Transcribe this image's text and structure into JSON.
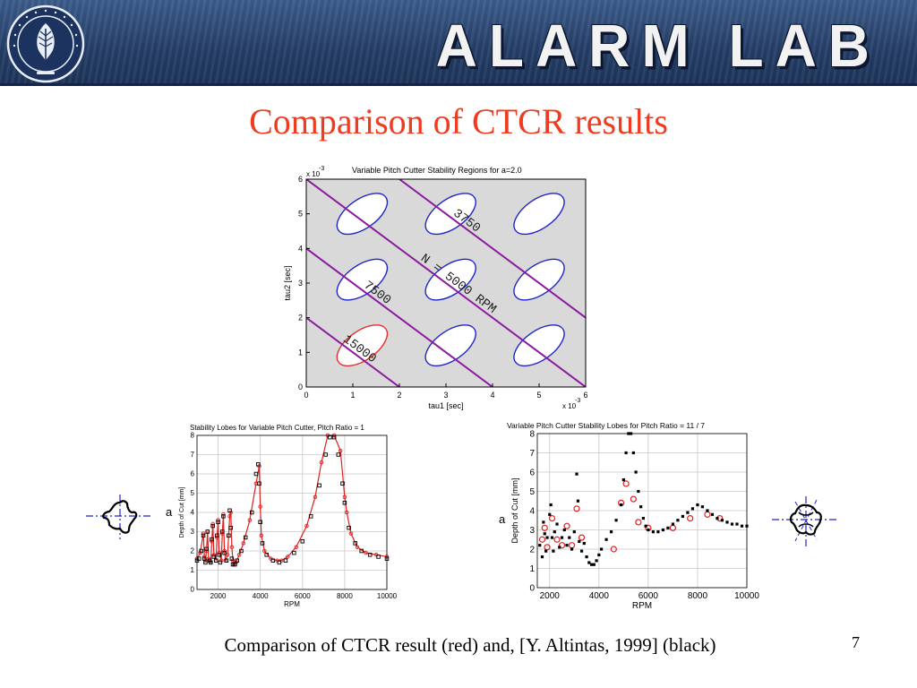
{
  "header": {
    "title": "ALARM LAB",
    "logo": "university-seal"
  },
  "slide": {
    "title": "Comparison of CTCR results",
    "caption": "Comparison of CTCR result (red) and, [Y.  Altintas, 1999] (black)",
    "page_number": "7",
    "left_marker": "a",
    "right_marker": "a"
  },
  "colors": {
    "title": "#ef3b1f",
    "stable_region": "#1f24c9",
    "red_region": "#e82b2b",
    "line": "#8b1a9e",
    "black_marks": "#000000"
  },
  "chart_data": [
    {
      "type": "scatter",
      "title": "Variable Pitch Cutter Stability Regions for a=2.0",
      "xlabel": "tau1 [sec]",
      "ylabel": "tau2 [sec]",
      "x_multiplier": "x 10",
      "x_multiplier_exp": "-3",
      "y_multiplier": "x 10",
      "y_multiplier_exp": "-3",
      "xlim": [
        0,
        6
      ],
      "ylim": [
        0,
        6
      ],
      "xticks": [
        0,
        1,
        2,
        3,
        4,
        5,
        6
      ],
      "yticks": [
        0,
        1,
        2,
        3,
        4,
        5,
        6
      ],
      "lines": [
        {
          "label": "15000",
          "sum": 2
        },
        {
          "label": "7500",
          "sum": 4
        },
        {
          "label": "N  =  5000  RPM",
          "sum": 6
        },
        {
          "label": "3750",
          "sum": 8
        }
      ],
      "regions": [
        {
          "cx": 1.2,
          "cy": 1.2,
          "rx": 0.62,
          "ry": 0.42,
          "color": "red"
        },
        {
          "cx": 1.2,
          "cy": 5.0,
          "rx": 0.62,
          "ry": 0.42,
          "color": "blue"
        },
        {
          "cx": 3.1,
          "cy": 5.0,
          "rx": 0.62,
          "ry": 0.42,
          "color": "blue"
        },
        {
          "cx": 5.0,
          "cy": 5.0,
          "rx": 0.62,
          "ry": 0.42,
          "color": "blue"
        },
        {
          "cx": 1.2,
          "cy": 3.1,
          "rx": 0.62,
          "ry": 0.42,
          "color": "blue"
        },
        {
          "cx": 3.1,
          "cy": 3.1,
          "rx": 0.62,
          "ry": 0.42,
          "color": "blue"
        },
        {
          "cx": 5.0,
          "cy": 3.1,
          "rx": 0.62,
          "ry": 0.42,
          "color": "blue"
        },
        {
          "cx": 3.1,
          "cy": 1.2,
          "rx": 0.62,
          "ry": 0.42,
          "color": "blue"
        },
        {
          "cx": 5.0,
          "cy": 1.2,
          "rx": 0.62,
          "ry": 0.42,
          "color": "blue"
        }
      ],
      "grid": false
    },
    {
      "type": "line",
      "title": "Stability Lobes for Variable Pitch Cutter, Pitch Ratio = 1",
      "xlabel": "RPM",
      "ylabel": "Depth of Cut [mm]",
      "xlim": [
        1000,
        10000
      ],
      "ylim": [
        0,
        8
      ],
      "xticks": [
        2000,
        4000,
        6000,
        8000,
        10000
      ],
      "yticks": [
        0,
        1,
        2,
        3,
        4,
        5,
        6,
        7,
        8
      ],
      "grid": true,
      "series": [
        {
          "style": "red-line-with-circles",
          "x": [
            1000,
            1150,
            1300,
            1350,
            1400,
            1450,
            1500,
            1550,
            1650,
            1700,
            1750,
            1800,
            1900,
            1950,
            2000,
            2050,
            2150,
            2200,
            2250,
            2300,
            2350,
            2450,
            2550,
            2600,
            2650,
            2700,
            2750,
            2850,
            3000,
            3200,
            3500,
            3800,
            3950,
            4000,
            4050,
            4200,
            4500,
            4800,
            5000,
            5300,
            5700,
            6200,
            6600,
            6900,
            7200,
            7500,
            7800,
            8000,
            8100,
            8300,
            8600,
            9000,
            9500,
            10000
          ],
          "y": [
            1.6,
            1.9,
            2.9,
            1.7,
            1.5,
            2.0,
            3.0,
            1.6,
            1.4,
            2.5,
            3.4,
            1.8,
            1.5,
            2.7,
            3.6,
            1.9,
            1.5,
            2.9,
            3.9,
            2.0,
            1.5,
            1.8,
            3.8,
            4.0,
            2.2,
            1.5,
            1.3,
            1.4,
            1.8,
            2.4,
            3.6,
            5.5,
            6.4,
            4.3,
            2.8,
            2.0,
            1.6,
            1.5,
            1.5,
            1.7,
            2.2,
            3.3,
            4.8,
            6.6,
            8.0,
            8.0,
            7.2,
            4.8,
            4.0,
            2.9,
            2.2,
            1.9,
            1.8,
            1.7
          ]
        },
        {
          "style": "black-squares",
          "x": [
            1000,
            1100,
            1200,
            1300,
            1350,
            1400,
            1450,
            1500,
            1600,
            1650,
            1700,
            1750,
            1800,
            1900,
            1950,
            2000,
            2050,
            2100,
            2200,
            2250,
            2300,
            2400,
            2500,
            2550,
            2600,
            2650,
            2700,
            2800,
            2900,
            3100,
            3300,
            3600,
            3800,
            3900,
            3950,
            4000,
            4100,
            4300,
            4600,
            4900,
            5200,
            5600,
            6000,
            6400,
            6800,
            7100,
            7300,
            7500,
            7700,
            7900,
            8000,
            8200,
            8500,
            8800,
            9200,
            9600,
            10000
          ],
          "y": [
            1.5,
            1.6,
            2.0,
            2.8,
            1.6,
            1.4,
            2.1,
            3.0,
            1.5,
            1.4,
            2.6,
            3.3,
            1.7,
            1.5,
            2.8,
            3.5,
            1.8,
            1.4,
            3.0,
            3.8,
            1.9,
            1.5,
            2.8,
            4.1,
            3.2,
            1.6,
            1.3,
            1.3,
            1.5,
            2.0,
            2.7,
            4.0,
            6.0,
            6.5,
            5.5,
            3.5,
            2.4,
            1.8,
            1.5,
            1.4,
            1.5,
            1.9,
            2.5,
            3.8,
            5.4,
            7.0,
            7.9,
            7.9,
            7.0,
            5.5,
            4.5,
            3.2,
            2.4,
            2.0,
            1.8,
            1.7,
            1.6
          ]
        }
      ]
    },
    {
      "type": "scatter",
      "title": "Variable Pitch Cutter Stability Lobes for Pitch Ratio = 11 / 7",
      "xlabel": "RPM",
      "ylabel": "Depth of Cut [mm]",
      "xlim": [
        1500,
        10000
      ],
      "ylim": [
        0,
        8
      ],
      "xticks": [
        2000,
        4000,
        6000,
        8000,
        10000
      ],
      "yticks": [
        0,
        1,
        2,
        3,
        4,
        5,
        6,
        7,
        8
      ],
      "grid": true,
      "series": [
        {
          "style": "red-circles",
          "x": [
            1700,
            1800,
            1900,
            2100,
            2300,
            2500,
            2700,
            2900,
            3100,
            3300,
            4600,
            4900,
            5100,
            5400,
            5600,
            6000,
            7000,
            7700,
            8400,
            8900
          ],
          "y": [
            2.5,
            3.1,
            2.1,
            3.6,
            2.5,
            2.2,
            3.2,
            2.2,
            4.1,
            2.6,
            2.0,
            4.4,
            5.4,
            4.6,
            3.4,
            3.1,
            3.1,
            3.6,
            3.8,
            3.6
          ]
        },
        {
          "style": "black-dots",
          "x": [
            1600,
            1700,
            1750,
            1800,
            1850,
            1900,
            2000,
            2050,
            2100,
            2150,
            2200,
            2300,
            2400,
            2500,
            2600,
            2700,
            2800,
            2900,
            3000,
            3100,
            3150,
            3200,
            3300,
            3400,
            3500,
            3600,
            3700,
            3800,
            3900,
            4000,
            4100,
            4300,
            4500,
            4700,
            4900,
            5000,
            5100,
            5200,
            5300,
            5400,
            5500,
            5600,
            5700,
            5800,
            5900,
            6000,
            6200,
            6400,
            6600,
            6800,
            7000,
            7200,
            7400,
            7600,
            7800,
            8000,
            8200,
            8400,
            8600,
            8800,
            9000,
            9200,
            9400,
            9600,
            9800,
            10000
          ],
          "y": [
            2.2,
            1.6,
            3.4,
            2.8,
            1.9,
            2.6,
            3.8,
            4.3,
            2.6,
            1.9,
            2.9,
            3.3,
            2.1,
            2.6,
            3.0,
            2.2,
            2.6,
            2.0,
            2.9,
            5.9,
            4.5,
            2.4,
            1.9,
            2.3,
            1.6,
            1.3,
            1.2,
            1.2,
            1.4,
            1.7,
            2.0,
            2.5,
            2.9,
            3.5,
            4.3,
            5.6,
            7.0,
            8.0,
            8.0,
            7.0,
            6.0,
            5.0,
            4.2,
            3.6,
            3.2,
            3.0,
            2.9,
            2.9,
            3.0,
            3.1,
            3.3,
            3.5,
            3.7,
            3.9,
            4.1,
            4.3,
            4.2,
            4.0,
            3.8,
            3.6,
            3.5,
            3.4,
            3.3,
            3.3,
            3.2,
            3.2
          ]
        }
      ]
    }
  ]
}
